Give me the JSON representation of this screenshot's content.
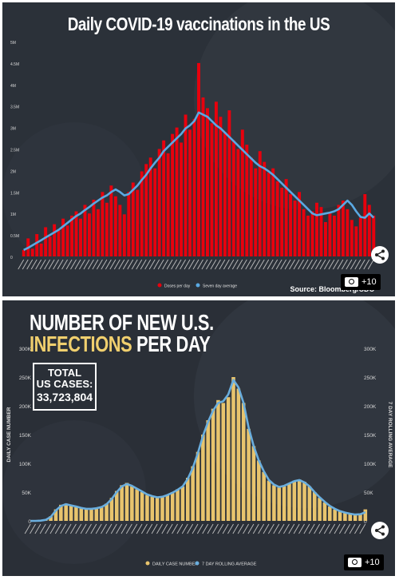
{
  "chart_data": [
    {
      "type": "bar",
      "title": "Daily COVID-19 vaccinations in the US",
      "yticks": [
        "0",
        "0.5M",
        "1M",
        "1.5M",
        "2M",
        "2.5M",
        "3M",
        "3.5M",
        "4M",
        "4.5M",
        "5M"
      ],
      "ylim": [
        0,
        5000000
      ],
      "series": [
        {
          "name": "Doses per day",
          "color": "#e8000d",
          "values": [
            150000,
            420000,
            180000,
            520000,
            300000,
            680000,
            460000,
            750000,
            600000,
            880000,
            720000,
            950000,
            1050000,
            880000,
            1200000,
            1000000,
            1320000,
            1100000,
            1500000,
            1250000,
            1650000,
            1400000,
            1200000,
            980000,
            1500000,
            1720000,
            1550000,
            1980000,
            2150000,
            2300000,
            2050000,
            2500000,
            2700000,
            2400000,
            2850000,
            3000000,
            2650000,
            3300000,
            2950000,
            3200000,
            4500000,
            3700000,
            3450000,
            3100000,
            3600000,
            3250000,
            2900000,
            3400000,
            2700000,
            2500000,
            2950000,
            2600000,
            2300000,
            2050000,
            2450000,
            2200000,
            1950000,
            2050000,
            1750000,
            1600000,
            1800000,
            1450000,
            1300000,
            1500000,
            1100000,
            950000,
            1050000,
            1250000,
            1150000,
            800000,
            1000000,
            950000,
            1200000,
            1300000,
            1100000,
            850000,
            700000,
            900000,
            1450000,
            1200000,
            950000
          ]
        },
        {
          "name": "Seven day average",
          "color": "#5aa9e3",
          "values": [
            150000,
            200000,
            260000,
            320000,
            380000,
            440000,
            500000,
            560000,
            620000,
            700000,
            780000,
            860000,
            940000,
            1000000,
            1080000,
            1150000,
            1230000,
            1300000,
            1370000,
            1420000,
            1500000,
            1560000,
            1500000,
            1420000,
            1450000,
            1550000,
            1650000,
            1780000,
            1900000,
            2050000,
            2180000,
            2300000,
            2450000,
            2550000,
            2650000,
            2750000,
            2850000,
            2980000,
            3050000,
            3150000,
            3350000,
            3300000,
            3250000,
            3150000,
            3050000,
            2980000,
            2880000,
            2780000,
            2680000,
            2580000,
            2480000,
            2380000,
            2280000,
            2180000,
            2100000,
            2050000,
            1980000,
            1900000,
            1800000,
            1700000,
            1600000,
            1500000,
            1400000,
            1300000,
            1200000,
            1100000,
            1000000,
            960000,
            980000,
            1000000,
            1020000,
            1050000,
            1100000,
            1200000,
            1300000,
            1200000,
            1050000,
            920000,
            900000,
            1000000,
            900000
          ]
        }
      ],
      "legend": "bottom",
      "source": "Source: Bloomberg/CDC"
    },
    {
      "type": "bar",
      "title": "NUMBER OF NEW U.S. INFECTIONS PER DAY",
      "title_line1": "NUMBER OF NEW U.S.",
      "title_highlight": "INFECTIONS",
      "title_rest": "PER DAY",
      "ylabel": "DAILY CASE NUMBER",
      "ylabel_right": "7 DAY ROLLING AVERAGE",
      "yticks": [
        "0",
        "50K",
        "100K",
        "150K",
        "200K",
        "250K",
        "300K"
      ],
      "ylim": [
        0,
        300000
      ],
      "total_label": "TOTAL\nUS CASES:",
      "total_label_1": "TOTAL",
      "total_label_2": "US CASES:",
      "total_value": "33,723,804",
      "series": [
        {
          "name": "DAILY CASE NUMBER",
          "color": "#e8c46d",
          "values": [
            0,
            0,
            500,
            2000,
            8000,
            20000,
            28000,
            30000,
            27000,
            25000,
            22000,
            20000,
            21000,
            22000,
            24000,
            30000,
            40000,
            52000,
            62000,
            66000,
            60000,
            55000,
            50000,
            45000,
            42000,
            40000,
            42000,
            45000,
            50000,
            55000,
            60000,
            75000,
            95000,
            120000,
            150000,
            175000,
            195000,
            210000,
            205000,
            215000,
            250000,
            230000,
            205000,
            160000,
            130000,
            105000,
            85000,
            70000,
            62000,
            58000,
            60000,
            65000,
            70000,
            72000,
            68000,
            60000,
            50000,
            40000,
            32000,
            25000,
            20000,
            17000,
            14000,
            12000,
            10000,
            12000,
            20000
          ]
        },
        {
          "name": "7 DAY ROLLING AVERAGE",
          "color": "#6aaede",
          "values": [
            0,
            0,
            400,
            1800,
            7000,
            18000,
            26000,
            29000,
            27000,
            25000,
            22500,
            21000,
            21000,
            22000,
            24000,
            29000,
            38000,
            50000,
            60000,
            64000,
            61000,
            56000,
            51000,
            46000,
            43000,
            41000,
            42000,
            45000,
            49000,
            54000,
            60000,
            73000,
            92000,
            118000,
            148000,
            172000,
            192000,
            205000,
            208000,
            220000,
            245000,
            232000,
            205000,
            162000,
            130000,
            105000,
            86000,
            71000,
            63000,
            59000,
            61000,
            65000,
            69000,
            71000,
            67000,
            60000,
            50000,
            41000,
            33000,
            26000,
            21000,
            17000,
            14500,
            12500,
            11000,
            11500,
            15000
          ]
        }
      ],
      "legend": "bottom"
    }
  ],
  "photo_count": "+10"
}
